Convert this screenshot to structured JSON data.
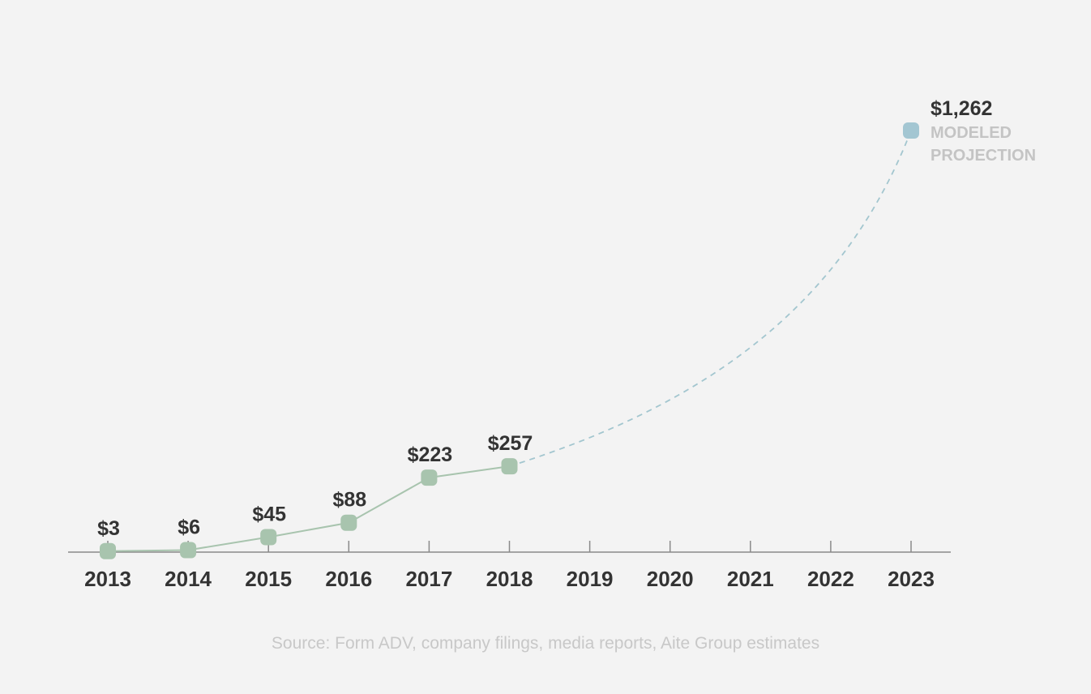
{
  "chart_data": {
    "type": "line",
    "x": [
      "2013",
      "2014",
      "2015",
      "2016",
      "2017",
      "2018",
      "2019",
      "2020",
      "2021",
      "2022",
      "2023"
    ],
    "series": [
      {
        "kind": "actual",
        "x": [
          "2013",
          "2014",
          "2015",
          "2016",
          "2017",
          "2018"
        ],
        "values": [
          3,
          6,
          45,
          88,
          223,
          257
        ],
        "labels": [
          "$3",
          "$6",
          "$45",
          "$88",
          "$223",
          "$257"
        ],
        "color": "#a8c4ae",
        "style": "solid"
      },
      {
        "kind": "projection",
        "x": [
          "2018",
          "2023"
        ],
        "values": [
          257,
          1262
        ],
        "labels": [
          "",
          "$1,262"
        ],
        "color": "#a3c6cf",
        "marker_color": "#a3c6d2",
        "style": "dashed"
      }
    ],
    "projection_note": [
      "MODELED",
      "PROJECTION"
    ],
    "ylim": [
      0,
      1262
    ],
    "grid": false,
    "title": "",
    "xlabel": "",
    "ylabel": ""
  },
  "source": "Source: Form ADV, company filings, media reports, Aite Group estimates"
}
